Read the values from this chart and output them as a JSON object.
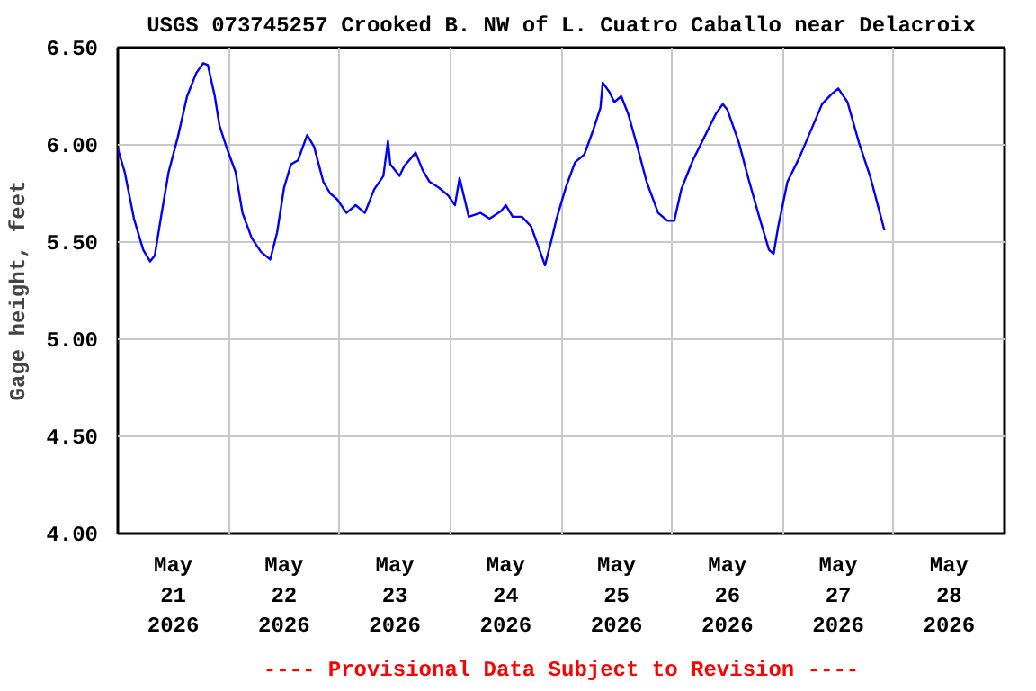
{
  "chart_data": {
    "type": "line",
    "title": "USGS 073745257 Crooked B. NW of L. Cuatro Caballo near Delacroix",
    "ylabel": "Gage height, feet",
    "annotations": [
      "---- Provisional Data Subject to Revision ----"
    ],
    "xlim": [
      "2026-05-21T00:00",
      "2026-05-29T00:00"
    ],
    "xticks": [
      {
        "value": "2026-05-21T12:00",
        "label": "May\n21\n2026"
      },
      {
        "value": "2026-05-22T12:00",
        "label": "May\n22\n2026"
      },
      {
        "value": "2026-05-23T12:00",
        "label": "May\n23\n2026"
      },
      {
        "value": "2026-05-24T12:00",
        "label": "May\n24\n2026"
      },
      {
        "value": "2026-05-25T12:00",
        "label": "May\n25\n2026"
      },
      {
        "value": "2026-05-26T12:00",
        "label": "May\n26\n2026"
      },
      {
        "value": "2026-05-27T12:00",
        "label": "May\n27\n2026"
      },
      {
        "value": "2026-05-28T12:00",
        "label": "May\n28\n2026"
      },
      {
        "value": "2026-05-22T00:00",
        "label": null
      },
      {
        "value": "2026-05-23T00:00",
        "label": null
      },
      {
        "value": "2026-05-24T00:00",
        "label": null
      },
      {
        "value": "2026-05-25T00:00",
        "label": null
      },
      {
        "value": "2026-05-26T00:00",
        "label": null
      },
      {
        "value": "2026-05-27T00:00",
        "label": null
      },
      {
        "value": "2026-05-28T00:00",
        "label": null
      }
    ],
    "ylim": [
      4.0,
      6.5
    ],
    "yticks": [
      {
        "value": 4.0,
        "label": "4.00"
      },
      {
        "value": 4.5,
        "label": "4.50"
      },
      {
        "value": 5.0,
        "label": "5.00"
      },
      {
        "value": 5.5,
        "label": "5.50"
      },
      {
        "value": 6.0,
        "label": "6.00"
      },
      {
        "value": 6.5,
        "label": "6.50"
      }
    ],
    "grid": true,
    "marker": "none",
    "line_style": "solid",
    "series": [
      {
        "color": "#0000ff",
        "x": [
          "2026-05-21T00:00",
          "2026-05-21T01:30",
          "2026-05-21T03:30",
          "2026-05-21T05:30",
          "2026-05-21T07:00",
          "2026-05-21T08:00",
          "2026-05-21T09:30",
          "2026-05-21T11:00",
          "2026-05-21T13:00",
          "2026-05-21T15:00",
          "2026-05-21T17:00",
          "2026-05-21T18:30",
          "2026-05-21T19:30",
          "2026-05-21T21:00",
          "2026-05-21T22:00",
          "2026-05-21T23:30",
          "2026-05-22T01:30",
          "2026-05-22T03:00",
          "2026-05-22T05:00",
          "2026-05-22T07:00",
          "2026-05-22T09:00",
          "2026-05-22T10:30",
          "2026-05-22T12:00",
          "2026-05-22T13:30",
          "2026-05-22T15:00",
          "2026-05-22T17:00",
          "2026-05-22T18:30",
          "2026-05-22T20:30",
          "2026-05-22T22:00",
          "2026-05-22T23:30",
          "2026-05-23T01:30",
          "2026-05-23T03:30",
          "2026-05-23T05:30",
          "2026-05-23T07:30",
          "2026-05-23T09:30",
          "2026-05-23T10:30",
          "2026-05-23T11:00",
          "2026-05-23T13:00",
          "2026-05-23T14:00",
          "2026-05-23T16:30",
          "2026-05-23T18:00",
          "2026-05-23T19:30",
          "2026-05-23T21:30",
          "2026-05-23T23:30",
          "2026-05-24T01:00",
          "2026-05-24T02:00",
          "2026-05-24T04:00",
          "2026-05-24T06:30",
          "2026-05-24T08:30",
          "2026-05-24T11:00",
          "2026-05-24T12:00",
          "2026-05-24T13:30",
          "2026-05-24T15:30",
          "2026-05-24T17:30",
          "2026-05-24T19:00",
          "2026-05-24T20:30",
          "2026-05-24T22:00",
          "2026-05-24T23:00",
          "2026-05-25T01:00",
          "2026-05-25T03:00",
          "2026-05-25T05:00",
          "2026-05-25T07:00",
          "2026-05-25T08:30",
          "2026-05-25T09:00",
          "2026-05-25T10:30",
          "2026-05-25T11:30",
          "2026-05-25T13:00",
          "2026-05-25T14:30",
          "2026-05-25T16:30",
          "2026-05-25T18:30",
          "2026-05-25T21:00",
          "2026-05-25T23:00",
          "2026-05-26T00:30",
          "2026-05-26T02:00",
          "2026-05-26T04:30",
          "2026-05-26T07:00",
          "2026-05-26T09:30",
          "2026-05-26T11:00",
          "2026-05-26T12:00",
          "2026-05-26T14:30",
          "2026-05-26T16:30",
          "2026-05-26T19:00",
          "2026-05-26T21:00",
          "2026-05-26T22:00",
          "2026-05-26T23:00",
          "2026-05-27T01:00",
          "2026-05-27T03:30",
          "2026-05-27T06:00",
          "2026-05-27T08:30",
          "2026-05-27T10:30",
          "2026-05-27T12:00",
          "2026-05-27T14:00",
          "2026-05-27T16:30",
          "2026-05-27T19:00",
          "2026-05-27T22:00"
        ],
        "values": [
          5.98,
          5.86,
          5.62,
          5.46,
          5.4,
          5.43,
          5.65,
          5.86,
          6.04,
          6.25,
          6.37,
          6.42,
          6.41,
          6.25,
          6.1,
          5.99,
          5.86,
          5.65,
          5.52,
          5.45,
          5.41,
          5.55,
          5.78,
          5.9,
          5.92,
          6.05,
          5.99,
          5.81,
          5.75,
          5.72,
          5.65,
          5.69,
          5.65,
          5.77,
          5.84,
          6.02,
          5.9,
          5.84,
          5.89,
          5.96,
          5.87,
          5.81,
          5.78,
          5.74,
          5.69,
          5.83,
          5.63,
          5.65,
          5.62,
          5.66,
          5.69,
          5.63,
          5.63,
          5.58,
          5.48,
          5.38,
          5.52,
          5.62,
          5.78,
          5.91,
          5.95,
          6.08,
          6.19,
          6.32,
          6.27,
          6.22,
          6.25,
          6.16,
          5.99,
          5.81,
          5.65,
          5.61,
          5.61,
          5.77,
          5.92,
          6.04,
          6.16,
          6.21,
          6.18,
          6.01,
          5.83,
          5.62,
          5.46,
          5.44,
          5.58,
          5.81,
          5.93,
          6.07,
          6.21,
          6.26,
          6.29,
          6.22,
          6.01,
          5.83,
          5.56
        ]
      }
    ]
  }
}
